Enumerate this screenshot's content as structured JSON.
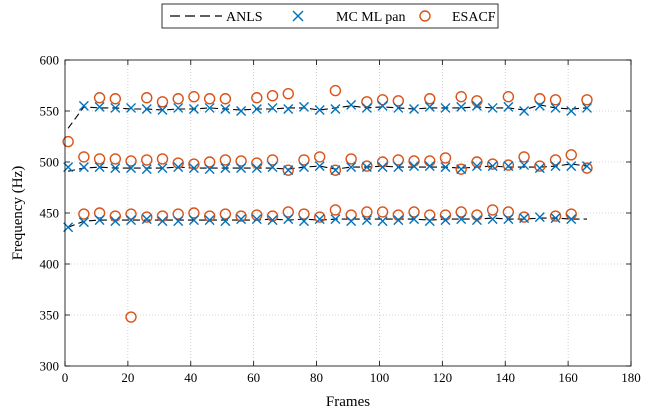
{
  "chart_data": {
    "type": "scatter",
    "title": "",
    "xlabel": "Frames",
    "ylabel": "Frequency (Hz)",
    "xlim": [
      0,
      180
    ],
    "ylim": [
      300,
      600
    ],
    "xticks": [
      0,
      20,
      40,
      60,
      80,
      100,
      120,
      140,
      160,
      180
    ],
    "yticks": [
      300,
      350,
      400,
      450,
      500,
      550,
      600
    ],
    "grid": true,
    "grid_style": "dotted",
    "legend_position": "top-center",
    "colors": {
      "anls": "#000000",
      "mc": "#0072BD",
      "esacf": "#D95319"
    },
    "legend": [
      {
        "key": "anls",
        "label": "ANLS",
        "style": "dashed-line"
      },
      {
        "key": "mc",
        "label": "MC ML pan",
        "style": "x-marker"
      },
      {
        "key": "esacf",
        "label": "ESACF",
        "style": "o-marker"
      }
    ],
    "x": [
      1,
      6,
      11,
      16,
      21,
      26,
      31,
      36,
      41,
      46,
      51,
      56,
      61,
      66,
      71,
      76,
      81,
      86,
      91,
      96,
      101,
      106,
      111,
      116,
      121,
      126,
      131,
      136,
      141,
      146,
      151,
      156,
      161,
      166
    ],
    "anls": [
      [
        533,
        554,
        553,
        553,
        552,
        552,
        551,
        552,
        552,
        553,
        552,
        551,
        552,
        552,
        553,
        553,
        551,
        553,
        555,
        553,
        554,
        553,
        552,
        553,
        553,
        553,
        554,
        553,
        553,
        551,
        556,
        553,
        552,
        553
      ],
      [
        491,
        494,
        495,
        494,
        494,
        494,
        494,
        495,
        494,
        494,
        494,
        494,
        494,
        494,
        493,
        495,
        496,
        493,
        495,
        495,
        496,
        495,
        495,
        495,
        495,
        494,
        495,
        496,
        495,
        495,
        495,
        496,
        498,
        496
      ],
      [
        436,
        442,
        443,
        443,
        443,
        443,
        443,
        443,
        443,
        443,
        443,
        443,
        443,
        444,
        443,
        444,
        443,
        444,
        444,
        444,
        444,
        444,
        444,
        443,
        444,
        444,
        444,
        445,
        444,
        444,
        445,
        445,
        444,
        444
      ]
    ],
    "mc": [
      [
        null,
        555,
        554,
        553,
        553,
        552,
        551,
        553,
        552,
        553,
        552,
        550,
        552,
        553,
        552,
        554,
        551,
        552,
        556,
        553,
        555,
        553,
        552,
        554,
        553,
        554,
        555,
        553,
        554,
        550,
        555,
        553,
        550,
        553
      ],
      [
        495,
        495,
        495,
        494,
        494,
        493,
        494,
        495,
        494,
        493,
        494,
        494,
        494,
        495,
        492,
        495,
        496,
        492,
        495,
        495,
        495,
        495,
        496,
        496,
        495,
        493,
        496,
        496,
        496,
        497,
        494,
        496,
        496,
        496
      ],
      [
        436,
        441,
        443,
        442,
        443,
        444,
        442,
        442,
        443,
        443,
        442,
        444,
        444,
        443,
        444,
        442,
        444,
        444,
        442,
        443,
        442,
        443,
        444,
        442,
        443,
        444,
        443,
        444,
        444,
        445,
        446,
        445,
        444,
        null
      ]
    ],
    "esacf": [
      [
        520,
        null,
        563,
        562,
        348,
        563,
        559,
        562,
        564,
        562,
        562,
        null,
        563,
        565,
        567,
        null,
        null,
        570,
        null,
        559,
        561,
        560,
        null,
        562,
        null,
        564,
        560,
        null,
        564,
        null,
        562,
        561,
        null,
        561
      ],
      [
        null,
        505,
        503,
        503,
        501,
        502,
        503,
        499,
        498,
        500,
        502,
        501,
        499,
        502,
        492,
        502,
        505,
        492,
        503,
        496,
        500,
        502,
        501,
        501,
        504,
        493,
        500,
        498,
        497,
        505,
        496,
        502,
        507,
        494
      ],
      [
        null,
        449,
        450,
        447,
        449,
        446,
        447,
        449,
        450,
        447,
        449,
        447,
        448,
        447,
        451,
        449,
        446,
        453,
        448,
        451,
        451,
        448,
        451,
        448,
        448,
        451,
        448,
        453,
        451,
        446,
        null,
        447,
        449,
        null
      ]
    ]
  }
}
